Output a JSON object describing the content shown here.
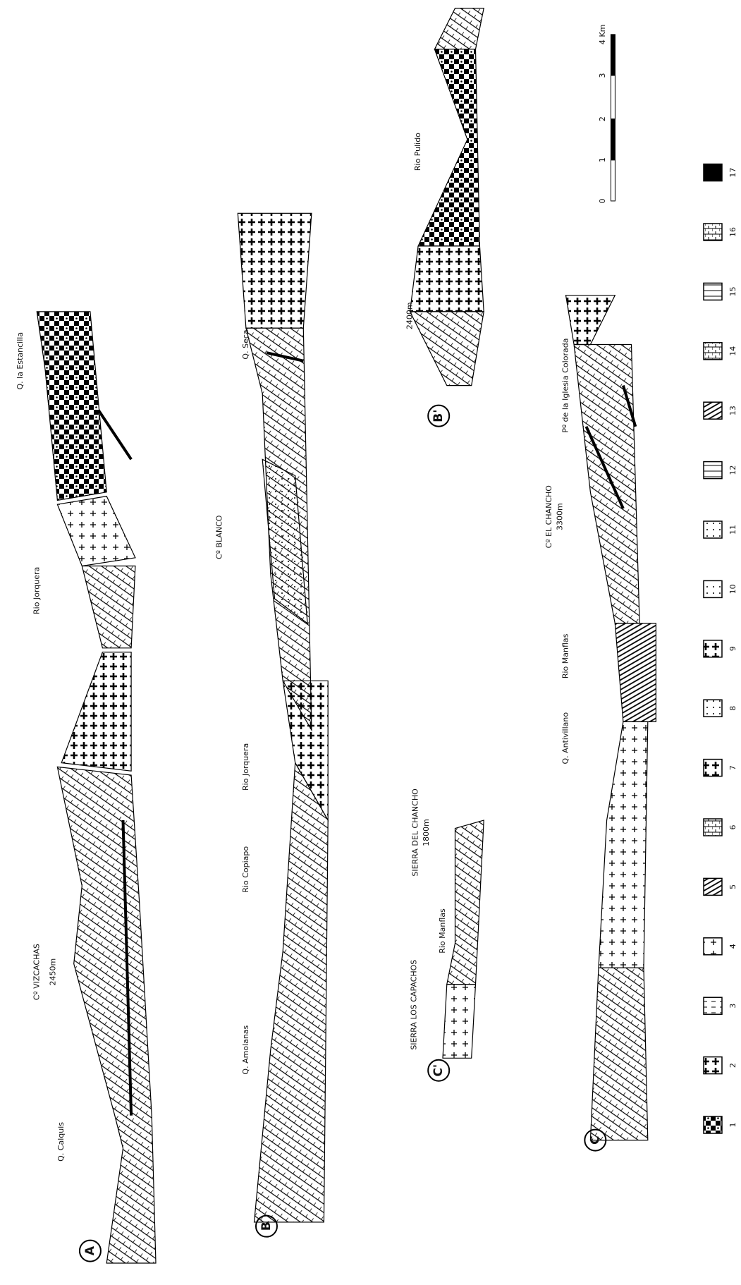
{
  "sections": [
    {
      "id": "A",
      "labels": [
        "Q. la Estancilla",
        "Rio Jorquera",
        "Cº VIZCACHAS",
        "2450m",
        "Q. Calquis"
      ]
    },
    {
      "id": "B",
      "labels": [
        "Q. Seca",
        "Cº BLANCO",
        "Rio Jorquera",
        "Rio Copiapo",
        "Q. Amolanas"
      ]
    },
    {
      "id": "B'",
      "labels": [
        "Rio Pulido",
        "2400m"
      ]
    },
    {
      "id": "C'",
      "labels": [
        "SIERRA DEL CHANCHO",
        "1800m",
        "Rio Manflas",
        "SIERRA LOS CAPACHOS"
      ]
    },
    {
      "id": "C",
      "labels": [
        "Pº de la Iglesia Colorada",
        "Cº EL CHANCHO",
        "3300m",
        "Rio Manflas",
        "Q. Antivillano"
      ]
    }
  ],
  "scale": {
    "ticks": [
      "0",
      "1",
      "2",
      "3",
      "4 Km"
    ]
  },
  "legend": [
    "1",
    "2",
    "3",
    "4",
    "5",
    "6",
    "7",
    "8",
    "9",
    "10",
    "11",
    "12",
    "13",
    "14",
    "15",
    "16",
    "17"
  ]
}
